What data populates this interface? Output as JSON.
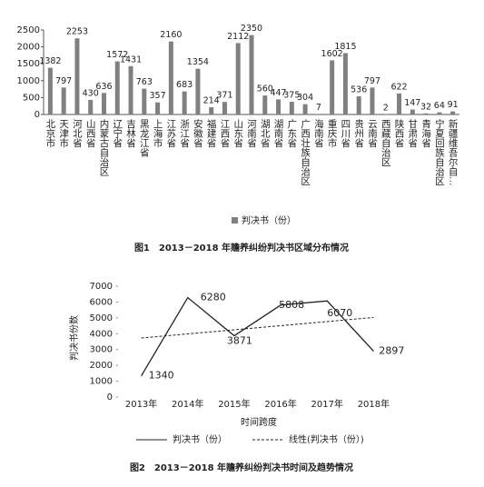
{
  "chart_data": [
    {
      "type": "bar",
      "title": "图1　2013－2018 年赡养纠纷判决书区域分布情况",
      "categories": [
        "北京市",
        "天津市",
        "河北省",
        "山西省",
        "内蒙古自治区",
        "辽宁省",
        "吉林省",
        "黑龙江省",
        "上海市",
        "江苏省",
        "浙江省",
        "安徽省",
        "福建省",
        "江西省",
        "山东省",
        "河南省",
        "湖北省",
        "湖南省",
        "广东省",
        "广西壮族自治区",
        "海南省",
        "重庆市",
        "四川省",
        "贵州省",
        "云南省",
        "西藏自治区",
        "陕西省",
        "甘肃省",
        "青海省",
        "宁夏回族自治区",
        "新疆维吾尔自…"
      ],
      "series": [
        {
          "name": "判决书（份）",
          "color": "#808080",
          "values": [
            1382,
            797,
            2253,
            430,
            636,
            1572,
            1431,
            763,
            357,
            2160,
            683,
            1354,
            214,
            371,
            2112,
            2350,
            560,
            447,
            375,
            304,
            7,
            1602,
            1815,
            536,
            797,
            2,
            622,
            147,
            32,
            64,
            91
          ]
        }
      ],
      "ylim": [
        0,
        2500
      ],
      "yticks": [
        0,
        500,
        1000,
        1500,
        2000,
        2500
      ],
      "legend": "bottom"
    },
    {
      "type": "line",
      "title": "图2　2013－2018 年赡养纠纷判决书时间及趋势情况",
      "categories": [
        "2013年",
        "2014年",
        "2015年",
        "2016年",
        "2017年",
        "2018年"
      ],
      "series": [
        {
          "name": "判决书（份）",
          "color": "#222222",
          "values": [
            1340,
            6280,
            3871,
            5808,
            6070,
            2897
          ]
        },
        {
          "name": "线性(判决书（份）)",
          "color": "#222222",
          "dashed": true,
          "values": [
            3728,
            3988,
            4248,
            4507,
            4767,
            5027
          ]
        }
      ],
      "ylim": [
        0,
        7000
      ],
      "yticks": [
        0,
        1000,
        2000,
        3000,
        4000,
        5000,
        6000,
        7000
      ],
      "ylabel": "判决书份数",
      "xlabel": "时间跨度",
      "legend": "bottom"
    }
  ]
}
